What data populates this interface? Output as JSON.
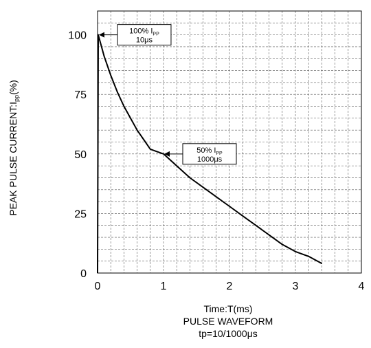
{
  "chart_data": {
    "type": "line",
    "xlabel": "Time:T(ms)",
    "ylabel_main": "PEAK PULSE CURRENT:I",
    "ylabel_sub": "pp",
    "ylabel_suffix": "(%)",
    "caption": [
      "PULSE WAVEFORM",
      "tp=10/1000μs"
    ],
    "xlim": [
      0,
      4
    ],
    "ylim": [
      0,
      110
    ],
    "x_ticks": [
      "0",
      "1",
      "2",
      "3",
      "4"
    ],
    "y_ticks": [
      "0",
      "25",
      "50",
      "75",
      "100"
    ],
    "grid": true,
    "series": [
      {
        "x": [
          0,
          0.01,
          0.1,
          0.2,
          0.3,
          0.4,
          0.5,
          0.6,
          0.7,
          0.8,
          0.9,
          1.0,
          1.2,
          1.4,
          1.6,
          1.8,
          2.0,
          2.2,
          2.4,
          2.6,
          2.8,
          3.0,
          3.2,
          3.4
        ],
        "y": [
          0,
          100,
          91,
          83,
          76,
          70,
          65,
          60,
          56,
          52,
          51,
          50,
          45,
          40,
          36,
          32,
          28,
          24,
          20,
          16,
          12,
          9,
          7,
          4
        ]
      }
    ],
    "annotations": [
      {
        "line1": "100%  I",
        "sub": "PP",
        "line2": "10μs",
        "x": 0.01,
        "y": 100
      },
      {
        "line1": "50%  I",
        "sub": "PP",
        "line2": "1000μs",
        "x": 1.0,
        "y": 50
      }
    ]
  }
}
